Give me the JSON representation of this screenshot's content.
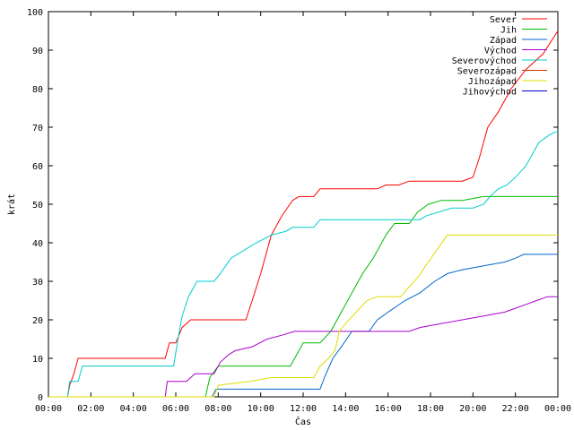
{
  "chart_data": {
    "type": "line",
    "xlabel": "Čas",
    "ylabel": "krát",
    "xlim": [
      0,
      24
    ],
    "ylim": [
      0,
      100
    ],
    "x_ticks": [
      0,
      2,
      4,
      6,
      8,
      10,
      12,
      14,
      16,
      18,
      20,
      22,
      24
    ],
    "x_tick_labels": [
      "00:00",
      "02:00",
      "04:00",
      "06:00",
      "08:00",
      "10:00",
      "12:00",
      "14:00",
      "16:00",
      "18:00",
      "20:00",
      "22:00",
      "00:00"
    ],
    "y_ticks": [
      0,
      10,
      20,
      30,
      40,
      50,
      60,
      70,
      80,
      90,
      100
    ],
    "y_tick_labels": [
      "0",
      "10",
      "20",
      "30",
      "40",
      "50",
      "60",
      "70",
      "80",
      "90",
      "100"
    ],
    "grid": false,
    "legend_position": "top-right",
    "series": [
      {
        "name": "Sever",
        "color": "#ff0000",
        "points": [
          [
            0,
            0
          ],
          [
            0.9,
            0
          ],
          [
            1.0,
            3
          ],
          [
            1.2,
            6
          ],
          [
            1.4,
            10
          ],
          [
            2,
            10
          ],
          [
            4,
            10
          ],
          [
            5.5,
            10
          ],
          [
            5.7,
            14
          ],
          [
            6.0,
            14
          ],
          [
            6.3,
            18
          ],
          [
            6.7,
            20
          ],
          [
            8,
            20
          ],
          [
            9.3,
            20
          ],
          [
            9.6,
            25
          ],
          [
            10,
            32
          ],
          [
            10.5,
            42
          ],
          [
            11,
            47
          ],
          [
            11.5,
            51
          ],
          [
            11.8,
            52
          ],
          [
            12.5,
            52
          ],
          [
            12.8,
            54
          ],
          [
            14,
            54
          ],
          [
            15.5,
            54
          ],
          [
            15.9,
            55
          ],
          [
            16.5,
            55
          ],
          [
            17,
            56
          ],
          [
            18.5,
            56
          ],
          [
            19.5,
            56
          ],
          [
            20,
            57
          ],
          [
            20.3,
            62
          ],
          [
            20.7,
            70
          ],
          [
            21.2,
            74
          ],
          [
            21.8,
            80
          ],
          [
            22.5,
            85
          ],
          [
            23.3,
            89
          ],
          [
            24,
            95
          ]
        ]
      },
      {
        "name": "Jih",
        "color": "#00bb00",
        "points": [
          [
            0,
            0
          ],
          [
            7.4,
            0
          ],
          [
            7.6,
            5
          ],
          [
            8,
            8
          ],
          [
            9,
            8
          ],
          [
            10.5,
            8
          ],
          [
            11.4,
            8
          ],
          [
            11.8,
            12
          ],
          [
            12,
            14
          ],
          [
            12.8,
            14
          ],
          [
            13.3,
            17
          ],
          [
            13.8,
            22
          ],
          [
            14.3,
            27
          ],
          [
            14.8,
            32
          ],
          [
            15.3,
            36
          ],
          [
            15.9,
            42
          ],
          [
            16.3,
            45
          ],
          [
            17,
            45
          ],
          [
            17.4,
            48
          ],
          [
            17.9,
            50
          ],
          [
            18.5,
            51
          ],
          [
            19.5,
            51
          ],
          [
            20.5,
            52
          ],
          [
            24,
            52
          ]
        ]
      },
      {
        "name": "Západ",
        "color": "#0066cc",
        "points": [
          [
            0,
            0
          ],
          [
            7.7,
            0
          ],
          [
            7.9,
            2
          ],
          [
            10,
            2
          ],
          [
            12.8,
            2
          ],
          [
            13.0,
            5
          ],
          [
            13.4,
            10
          ],
          [
            13.8,
            13
          ],
          [
            14.3,
            17
          ],
          [
            15.1,
            17
          ],
          [
            15.5,
            20
          ],
          [
            16.0,
            22
          ],
          [
            16.8,
            25
          ],
          [
            17.5,
            27
          ],
          [
            18.2,
            30
          ],
          [
            18.8,
            32
          ],
          [
            19.5,
            33
          ],
          [
            20.5,
            34
          ],
          [
            21.5,
            35
          ],
          [
            22,
            36
          ],
          [
            22.4,
            37
          ],
          [
            24,
            37
          ]
        ]
      },
      {
        "name": "Východ",
        "color": "#aa00cc",
        "points": [
          [
            0,
            0
          ],
          [
            5.5,
            0
          ],
          [
            5.6,
            4
          ],
          [
            6.5,
            4
          ],
          [
            6.9,
            6
          ],
          [
            7.8,
            6
          ],
          [
            8.1,
            9
          ],
          [
            8.5,
            11
          ],
          [
            8.8,
            12
          ],
          [
            9.6,
            13
          ],
          [
            10.3,
            15
          ],
          [
            11,
            16
          ],
          [
            11.6,
            17
          ],
          [
            14,
            17
          ],
          [
            17,
            17
          ],
          [
            17.5,
            18
          ],
          [
            18.5,
            19
          ],
          [
            19.5,
            20
          ],
          [
            20.5,
            21
          ],
          [
            21.5,
            22
          ],
          [
            22,
            23
          ],
          [
            22.5,
            24
          ],
          [
            23,
            25
          ],
          [
            23.5,
            26
          ],
          [
            24,
            26
          ]
        ]
      },
      {
        "name": "Severovýchod",
        "color": "#00cccc",
        "points": [
          [
            0,
            0
          ],
          [
            0.9,
            0
          ],
          [
            1.0,
            4
          ],
          [
            1.4,
            4
          ],
          [
            1.6,
            8
          ],
          [
            3,
            8
          ],
          [
            5.9,
            8
          ],
          [
            6.1,
            15
          ],
          [
            6.3,
            21
          ],
          [
            6.6,
            26
          ],
          [
            7.0,
            30
          ],
          [
            7.8,
            30
          ],
          [
            8.1,
            32
          ],
          [
            8.6,
            36
          ],
          [
            9.2,
            38
          ],
          [
            9.8,
            40
          ],
          [
            10.5,
            42
          ],
          [
            11.2,
            43
          ],
          [
            11.5,
            44
          ],
          [
            12.5,
            44
          ],
          [
            12.8,
            46
          ],
          [
            15,
            46
          ],
          [
            17.5,
            46
          ],
          [
            17.8,
            47
          ],
          [
            19,
            49
          ],
          [
            20,
            49
          ],
          [
            20.5,
            50
          ],
          [
            20.8,
            52
          ],
          [
            21.2,
            54
          ],
          [
            21.6,
            55
          ],
          [
            22,
            57
          ],
          [
            22.5,
            60
          ],
          [
            22.8,
            63
          ],
          [
            23.1,
            66
          ],
          [
            23.6,
            68
          ],
          [
            24,
            69
          ]
        ]
      },
      {
        "name": "Severozápad",
        "color": "#cc3300",
        "points": []
      },
      {
        "name": "Jihozápad",
        "color": "#dddd00",
        "points": [
          [
            0,
            0
          ],
          [
            7.8,
            0
          ],
          [
            8.0,
            3
          ],
          [
            9.5,
            4
          ],
          [
            10.5,
            5
          ],
          [
            12.5,
            5
          ],
          [
            12.8,
            8
          ],
          [
            13.2,
            10
          ],
          [
            13.5,
            12
          ],
          [
            13.7,
            17
          ],
          [
            14.0,
            19
          ],
          [
            14.5,
            22
          ],
          [
            15,
            25
          ],
          [
            15.5,
            26
          ],
          [
            16.6,
            26
          ],
          [
            16.9,
            28
          ],
          [
            17.4,
            31
          ],
          [
            17.9,
            35
          ],
          [
            18.4,
            39
          ],
          [
            18.8,
            42
          ],
          [
            20,
            42
          ],
          [
            24,
            42
          ]
        ]
      },
      {
        "name": "Jihovýchod",
        "color": "#0000cc",
        "points": []
      }
    ]
  }
}
